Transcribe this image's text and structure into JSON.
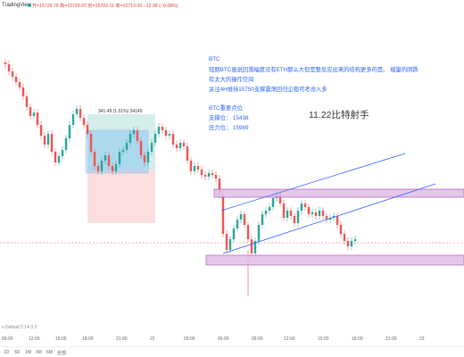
{
  "topbar": {
    "brand": "TradingView",
    "quote": "开=15726.75  高=15729.97  低=15703.11  收=15713.00  −12.98 (−0.08%)"
  },
  "annotation": {
    "lines": [
      "BTC",
      "短期BTC虽说回落幅度没有ETH那么大但是整反应出来的结构更多的是。 缩量的阴跌",
      "有太大的操作空间",
      "关注4H维持15750支撑震荡回归企稳可考虑入多",
      "",
      "BTC重要点位",
      "支撑位：  15438",
      "压力位：  15989"
    ],
    "text_color": "#2962ff"
  },
  "watermark": "11.22比特射手",
  "position_tool": {
    "label": "341.49 (1.51%) 34149"
  },
  "indicator_label": "s Default 5 14 3 3",
  "time_axis": {
    "labels": [
      {
        "t": "09:00"
      },
      {
        "t": "12:00"
      },
      {
        "t": "15:00"
      },
      {
        "t": "18:00"
      },
      {
        "t": "21:00"
      },
      {
        "t": "22"
      },
      {
        "t": "03:00"
      },
      {
        "t": "06:00"
      },
      {
        "t": "09:00"
      },
      {
        "t": "12:00"
      },
      {
        "t": "15:00"
      },
      {
        "t": "18:00"
      },
      {
        "t": "21:00"
      },
      {
        "t": "23"
      }
    ]
  },
  "bottombar": {
    "buttons": [
      "1D",
      "5D",
      "1M",
      "3M",
      "6M",
      "全部"
    ]
  },
  "colors": {
    "up": "#26a69a",
    "down": "#ef5350",
    "zone_fill": "#e1bee7",
    "zone_stroke": "#9c27b0",
    "channel": "#2962ff",
    "price_line": "#ef5350"
  }
}
